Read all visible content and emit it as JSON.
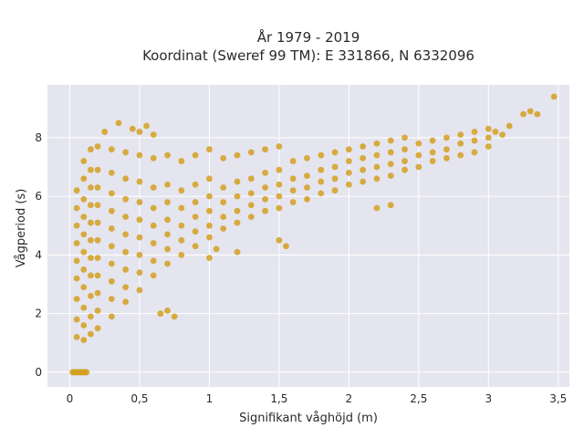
{
  "chart_data": {
    "type": "scatter",
    "title_lines": [
      "År 1979 - 2019",
      "Koordinat (Sweref 99 TM): E 331866, N 6332096"
    ],
    "xlabel": "Signifikant våghöjd (m)",
    "ylabel": "Vågperiod (s)",
    "xlim": [
      -0.16,
      3.58
    ],
    "ylim": [
      -0.5,
      9.8
    ],
    "x_ticks": [
      {
        "value": 0,
        "label": "0"
      },
      {
        "value": 0.5,
        "label": "0,5"
      },
      {
        "value": 1,
        "label": "1"
      },
      {
        "value": 1.5,
        "label": "1,5"
      },
      {
        "value": 2,
        "label": "2"
      },
      {
        "value": 2.5,
        "label": "2,5"
      },
      {
        "value": 3,
        "label": "3"
      },
      {
        "value": 3.5,
        "label": "3,5"
      }
    ],
    "y_ticks": [
      {
        "value": 0,
        "label": "0"
      },
      {
        "value": 2,
        "label": "2"
      },
      {
        "value": 4,
        "label": "4"
      },
      {
        "value": 6,
        "label": "6"
      },
      {
        "value": 8,
        "label": "8"
      }
    ],
    "grid": true,
    "marker_color": "#D4A020",
    "plot_background": "#E5E5EF",
    "points_x": [
      0.02,
      0.03,
      0.04,
      0.05,
      0.06,
      0.07,
      0.08,
      0.09,
      0.1,
      0.11,
      0.12,
      0.05,
      0.05,
      0.05,
      0.05,
      0.05,
      0.05,
      0.05,
      0.05,
      0.05,
      0.1,
      0.1,
      0.1,
      0.1,
      0.1,
      0.1,
      0.1,
      0.1,
      0.1,
      0.1,
      0.1,
      0.15,
      0.15,
      0.15,
      0.15,
      0.15,
      0.15,
      0.15,
      0.15,
      0.15,
      0.15,
      0.15,
      0.2,
      0.2,
      0.2,
      0.2,
      0.2,
      0.2,
      0.2,
      0.2,
      0.2,
      0.2,
      0.2,
      0.3,
      0.3,
      0.3,
      0.3,
      0.3,
      0.3,
      0.3,
      0.3,
      0.3,
      0.3,
      0.4,
      0.4,
      0.4,
      0.4,
      0.4,
      0.4,
      0.4,
      0.4,
      0.4,
      0.5,
      0.5,
      0.5,
      0.5,
      0.5,
      0.5,
      0.5,
      0.5,
      0.6,
      0.6,
      0.6,
      0.6,
      0.6,
      0.6,
      0.6,
      0.7,
      0.7,
      0.7,
      0.7,
      0.7,
      0.7,
      0.7,
      0.8,
      0.8,
      0.8,
      0.8,
      0.8,
      0.8,
      0.9,
      0.9,
      0.9,
      0.9,
      0.9,
      0.9,
      1.0,
      1.0,
      1.0,
      1.0,
      1.0,
      1.0,
      1.1,
      1.1,
      1.1,
      1.1,
      1.1,
      1.2,
      1.2,
      1.2,
      1.2,
      1.2,
      1.3,
      1.3,
      1.3,
      1.3,
      1.3,
      1.4,
      1.4,
      1.4,
      1.4,
      1.4,
      1.5,
      1.5,
      1.5,
      1.5,
      1.5,
      1.6,
      1.6,
      1.6,
      1.6,
      1.7,
      1.7,
      1.7,
      1.7,
      1.8,
      1.8,
      1.8,
      1.8,
      1.9,
      1.9,
      1.9,
      1.9,
      2.0,
      2.0,
      2.0,
      2.0,
      2.1,
      2.1,
      2.1,
      2.1,
      2.2,
      2.2,
      2.2,
      2.2,
      2.3,
      2.3,
      2.3,
      2.3,
      2.4,
      2.4,
      2.4,
      2.4,
      2.5,
      2.5,
      2.5,
      2.6,
      2.6,
      2.6,
      2.7,
      2.7,
      2.7,
      2.8,
      2.8,
      2.8,
      2.9,
      2.9,
      2.9,
      3.0,
      3.0,
      3.0,
      3.05,
      3.1,
      3.15,
      3.25,
      3.3,
      3.35,
      3.47,
      0.65,
      0.7,
      0.75,
      1.0,
      1.05,
      1.2,
      1.5,
      1.55,
      2.2,
      2.3,
      0.45,
      0.5,
      0.55,
      0.6,
      0.35,
      0.25
    ],
    "points_y": [
      0,
      0,
      0,
      0,
      0,
      0,
      0,
      0,
      0,
      0,
      0,
      1.2,
      1.8,
      2.5,
      3.2,
      3.8,
      4.4,
      5.0,
      5.6,
      6.2,
      1.1,
      1.6,
      2.2,
      2.9,
      3.5,
      4.1,
      4.7,
      5.3,
      5.9,
      6.6,
      7.2,
      1.3,
      1.9,
      2.6,
      3.3,
      3.9,
      4.5,
      5.1,
      5.7,
      6.3,
      6.9,
      7.6,
      1.5,
      2.1,
      2.7,
      3.3,
      3.9,
      4.5,
      5.1,
      5.7,
      6.3,
      6.9,
      7.7,
      1.9,
      2.5,
      3.1,
      3.7,
      4.3,
      4.9,
      5.5,
      6.1,
      6.8,
      7.6,
      2.4,
      2.9,
      3.5,
      4.1,
      4.7,
      5.3,
      5.9,
      6.6,
      7.5,
      2.8,
      3.4,
      4.0,
      4.6,
      5.2,
      5.8,
      6.5,
      7.4,
      3.3,
      3.8,
      4.4,
      5.0,
      5.6,
      6.3,
      7.3,
      3.7,
      4.2,
      4.7,
      5.2,
      5.8,
      6.4,
      7.4,
      4.0,
      4.5,
      5.0,
      5.6,
      6.2,
      7.2,
      4.3,
      4.8,
      5.3,
      5.8,
      6.4,
      7.4,
      4.6,
      5.0,
      5.5,
      6.0,
      6.6,
      7.6,
      4.9,
      5.3,
      5.8,
      6.3,
      7.3,
      5.1,
      5.5,
      6.0,
      6.5,
      7.4,
      5.3,
      5.7,
      6.1,
      6.6,
      7.5,
      5.5,
      5.9,
      6.3,
      6.8,
      7.6,
      5.6,
      6.0,
      6.4,
      6.9,
      7.7,
      5.8,
      6.2,
      6.6,
      7.2,
      5.9,
      6.3,
      6.7,
      7.3,
      6.1,
      6.5,
      6.9,
      7.4,
      6.2,
      6.6,
      7.0,
      7.5,
      6.4,
      6.8,
      7.2,
      7.6,
      6.5,
      6.9,
      7.3,
      7.7,
      6.6,
      7.0,
      7.4,
      7.8,
      6.7,
      7.1,
      7.5,
      7.9,
      6.9,
      7.2,
      7.6,
      8.0,
      7.0,
      7.4,
      7.8,
      7.2,
      7.5,
      7.9,
      7.3,
      7.6,
      8.0,
      7.4,
      7.8,
      8.1,
      7.5,
      7.9,
      8.2,
      7.7,
      8.0,
      8.3,
      8.2,
      8.1,
      8.4,
      8.8,
      8.9,
      8.8,
      9.4,
      2.0,
      2.1,
      1.9,
      3.9,
      4.2,
      4.1,
      4.5,
      4.3,
      5.6,
      5.7,
      8.3,
      8.2,
      8.4,
      8.1,
      8.5,
      8.2
    ]
  }
}
